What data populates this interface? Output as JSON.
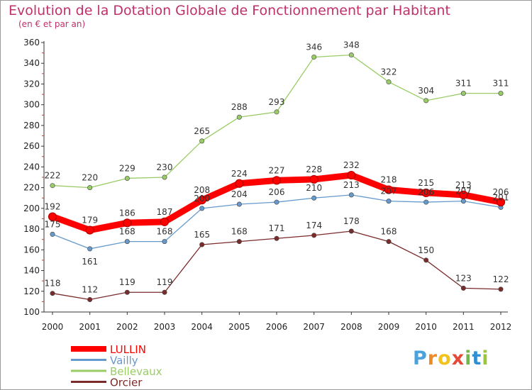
{
  "title": "Evolution de la Dotation Globale de Fonctionnement par Habitant",
  "subtitle": "(en € et par an)",
  "logo_text": "Proxiti",
  "chart_data": {
    "type": "line",
    "x": [
      "2000",
      "2001",
      "2002",
      "2003",
      "2004",
      "2005",
      "2006",
      "2007",
      "2008",
      "2009",
      "2010",
      "2011",
      "2012"
    ],
    "ylim": [
      100,
      360
    ],
    "yticks": [
      100,
      120,
      140,
      160,
      180,
      200,
      220,
      240,
      260,
      280,
      300,
      320,
      340,
      360
    ],
    "grid": false,
    "legend_position": "bottom-left",
    "series": [
      {
        "name": "LULLIN",
        "color": "#ff0000",
        "values": [
          192,
          179,
          186,
          187,
          208,
          224,
          227,
          228,
          232,
          218,
          215,
          213,
          206
        ]
      },
      {
        "name": "Vailly",
        "color": "#6699cc",
        "values": [
          175,
          161,
          168,
          168,
          200,
          204,
          206,
          210,
          213,
          207,
          206,
          207,
          201
        ]
      },
      {
        "name": "Bellevaux",
        "color": "#99cc66",
        "values": [
          222,
          220,
          229,
          230,
          265,
          288,
          293,
          346,
          348,
          322,
          304,
          311,
          311
        ]
      },
      {
        "name": "Orcier",
        "color": "#7a2b2b",
        "values": [
          118,
          112,
          119,
          119,
          165,
          168,
          171,
          174,
          178,
          168,
          150,
          123,
          122
        ]
      }
    ]
  }
}
